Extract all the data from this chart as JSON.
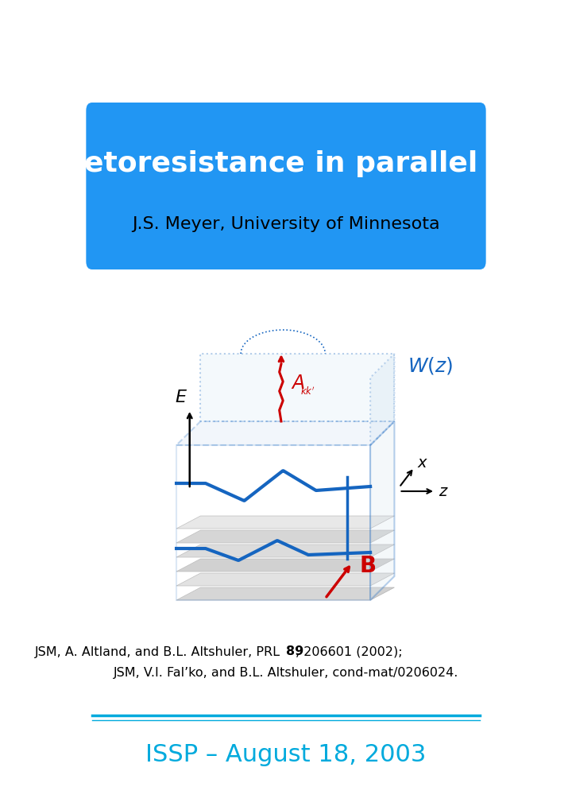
{
  "title": "Magnetoresistance in parallel fields",
  "author": "J.S. Meyer,",
  "author_affil": " University of Minnesota",
  "ref1": "JSM, A. Altland, and B.L. Altshuler, PRL ",
  "ref1_bold": "89",
  "ref1_end": ", 206601 (2002);",
  "ref2": "JSM, V.I. Fal’ko, and B.L. Altshuler, cond-mat/0206024.",
  "footer": "ISSP – August 18, 2003",
  "bg_color": "#2196F3",
  "title_color": "#FFFFFF",
  "author_color": "#000000",
  "blue_color": "#1565C0",
  "dark_blue": "#1a3a8a",
  "cyan_color": "#00AADD",
  "red_color": "#CC0000",
  "footer_color": "#00AADD"
}
